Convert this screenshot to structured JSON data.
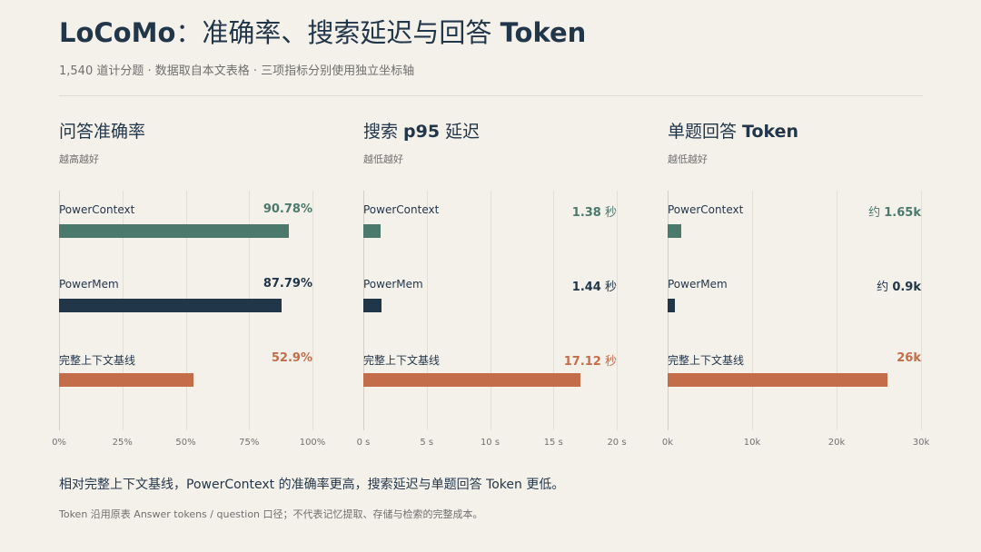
{
  "header": {
    "title_brand": "LoCoMo",
    "title_sep": "：准确率、搜索延迟与回答 ",
    "title_token": "Token",
    "subtitle": "1,540 道计分题 · 数据取自本文表格 · 三项指标分别使用独立坐标轴"
  },
  "footer": {
    "summary": "相对完整上下文基线，PowerContext 的准确率更高，搜索延迟与单题回答 Token 更低。",
    "footnote": "Token 沿用原表 Answer tokens / question 口径；不代表记忆提取、存储与检索的完整成本。"
  },
  "colors": {
    "PowerContext": "#4b7a6d",
    "PowerMem": "#22364a",
    "baseline": "#c46d4a"
  },
  "chart_data": [
    {
      "type": "bar",
      "orientation": "horizontal",
      "title_plain": "问答准确率",
      "title_bold": "",
      "title_after": "",
      "note": "越高越好",
      "categories": [
        "PowerContext",
        "PowerMem",
        "完整上下文基线"
      ],
      "values": [
        90.78,
        87.79,
        52.9
      ],
      "value_labels": [
        {
          "prefix": "",
          "num": "90.78%",
          "suffix": ""
        },
        {
          "prefix": "",
          "num": "87.79%",
          "suffix": ""
        },
        {
          "prefix": "",
          "num": "52.9%",
          "suffix": ""
        }
      ],
      "xlim": [
        0,
        100
      ],
      "xticks": [
        0,
        25,
        50,
        75,
        100
      ],
      "xtick_labels": [
        "0%",
        "25%",
        "50%",
        "75%",
        "100%"
      ],
      "grid": true
    },
    {
      "type": "bar",
      "orientation": "horizontal",
      "title_plain": "搜索 ",
      "title_bold": "p95",
      "title_after": " 延迟",
      "note": "越低越好",
      "categories": [
        "PowerContext",
        "PowerMem",
        "完整上下文基线"
      ],
      "values": [
        1.38,
        1.44,
        17.12
      ],
      "value_labels": [
        {
          "prefix": "",
          "num": "1.38",
          "suffix": " 秒"
        },
        {
          "prefix": "",
          "num": "1.44",
          "suffix": " 秒"
        },
        {
          "prefix": "",
          "num": "17.12",
          "suffix": " 秒"
        }
      ],
      "xlim": [
        0,
        20
      ],
      "xticks": [
        0,
        5,
        10,
        15,
        20
      ],
      "xtick_labels": [
        "0 s",
        "5 s",
        "10 s",
        "15 s",
        "20 s"
      ],
      "grid": true
    },
    {
      "type": "bar",
      "orientation": "horizontal",
      "title_plain": "单题回答 ",
      "title_bold": "Token",
      "title_after": "",
      "note": "越低越好",
      "categories": [
        "PowerContext",
        "PowerMem",
        "完整上下文基线"
      ],
      "values": [
        1650,
        900,
        26000
      ],
      "value_labels": [
        {
          "prefix": "约 ",
          "num": "1.65k",
          "suffix": ""
        },
        {
          "prefix": "约 ",
          "num": "0.9k",
          "suffix": ""
        },
        {
          "prefix": "",
          "num": "26k",
          "suffix": ""
        }
      ],
      "xlim": [
        0,
        30000
      ],
      "xticks": [
        0,
        10000,
        20000,
        30000
      ],
      "xtick_labels": [
        "0k",
        "10k",
        "20k",
        "30k"
      ],
      "grid": true
    }
  ]
}
